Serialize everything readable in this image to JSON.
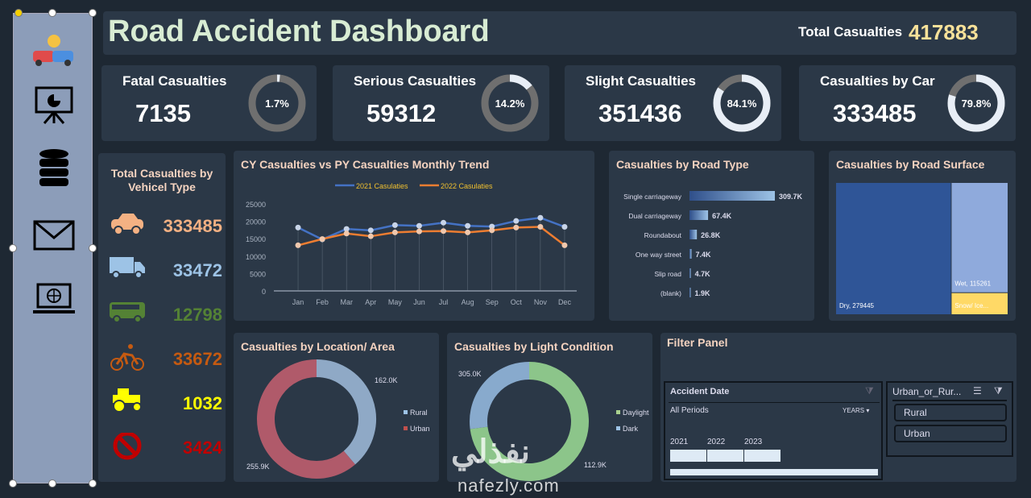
{
  "header": {
    "title": "Road Accident Dashboard",
    "total_label": "Total Casualties",
    "total_value": "417883"
  },
  "sidebar": {
    "items": [
      {
        "icon": "car-crash-icon"
      },
      {
        "icon": "presentation-icon"
      },
      {
        "icon": "database-icon"
      },
      {
        "icon": "mail-icon"
      },
      {
        "icon": "laptop-globe-icon"
      }
    ]
  },
  "kpis": [
    {
      "label": "Fatal Casualties",
      "value": "7135",
      "pct_label": "1.7%",
      "pct": 1.7
    },
    {
      "label": "Serious Casualties",
      "value": "59312",
      "pct_label": "14.2%",
      "pct": 14.2
    },
    {
      "label": "Slight Casualties",
      "value": "351436",
      "pct_label": "84.1%",
      "pct": 84.1
    },
    {
      "label": "Casualties by Car",
      "value": "333485",
      "pct_label": "79.8%",
      "pct": 79.8
    }
  ],
  "vehicles": {
    "title": "Total Casualties by Vehicel Type",
    "items": [
      {
        "icon": "car-icon",
        "value": "333485",
        "color": "#f4b183"
      },
      {
        "icon": "truck-icon",
        "value": "33472",
        "color": "#9dc3e6"
      },
      {
        "icon": "bus-icon",
        "value": "12798",
        "color": "#548235"
      },
      {
        "icon": "bicycle-icon",
        "value": "33672",
        "color": "#c55a11"
      },
      {
        "icon": "tractor-icon",
        "value": "1032",
        "color": "#ffff00"
      },
      {
        "icon": "prohibited-icon",
        "value": "3424",
        "color": "#c00000"
      }
    ]
  },
  "chart_data": [
    {
      "type": "line",
      "title": "CY Casualties vs PY Casualties Monthly Trend",
      "categories": [
        "Jan",
        "Feb",
        "Mar",
        "Apr",
        "May",
        "Jun",
        "Jul",
        "Aug",
        "Sep",
        "Oct",
        "Nov",
        "Dec"
      ],
      "ylim": [
        0,
        25000
      ],
      "yticks": [
        "25000",
        "20000",
        "15000",
        "10000",
        "5000",
        "0"
      ],
      "legend": "top",
      "series": [
        {
          "name": "2021 Casulaties",
          "color": "#4472c4",
          "values": [
            18200,
            14800,
            17800,
            17400,
            18900,
            18700,
            19600,
            18700,
            18500,
            20100,
            21000,
            18400
          ]
        },
        {
          "name": "2022 Casulaties",
          "color": "#ed7d31",
          "values": [
            13100,
            14900,
            16500,
            15700,
            16800,
            17100,
            17200,
            16800,
            17400,
            18200,
            18400,
            13100
          ]
        }
      ]
    },
    {
      "type": "bar",
      "orientation": "horizontal",
      "title": "Casualties by Road Type",
      "categories": [
        "Single carriageway",
        "Dual carriageway",
        "Roundabout",
        "One way street",
        "Slip road",
        "(blank)"
      ],
      "values": [
        309.7,
        67.4,
        26.8,
        7.4,
        4.7,
        1.9
      ],
      "labels": [
        "309.7K",
        "67.4K",
        "26.8K",
        "7.4K",
        "4.7K",
        "1.9K"
      ]
    },
    {
      "type": "treemap",
      "title": "Casualties by Road Surface",
      "items": [
        {
          "label": "Dry, 279445",
          "value": 279445,
          "color": "#2f5597"
        },
        {
          "label": "Wet, 115261",
          "value": 115261,
          "color": "#8faadc"
        },
        {
          "label": "Snow/ Ice...",
          "value": 23177,
          "color": "#ffd966"
        }
      ]
    },
    {
      "type": "pie",
      "donut": true,
      "title": "Casualties by Location/ Area",
      "series": [
        {
          "name": "Rural",
          "value": 162.0,
          "label": "162.0K",
          "color": "#9dc3e6"
        },
        {
          "name": "Urban",
          "value": 255.9,
          "label": "255.9K",
          "color": "#c0504d"
        }
      ]
    },
    {
      "type": "pie",
      "donut": true,
      "title": "Casualties by Light Condition",
      "series": [
        {
          "name": "Daylight",
          "value": 305.0,
          "label": "305.0K",
          "color": "#a9d18e"
        },
        {
          "name": "Dark",
          "value": 112.9,
          "label": "112.9K",
          "color": "#9dc3e6"
        }
      ]
    }
  ],
  "filter": {
    "title": "Filter Panel",
    "date_title": "Accident Date",
    "periods": "All Periods",
    "granularity": "YEARS",
    "years": [
      "2021",
      "2022",
      "2023"
    ],
    "area_title": "Urban_or_Rur...",
    "area_options": [
      "Rural",
      "Urban"
    ]
  },
  "watermark": {
    "arabic": "نفذلي",
    "latin": "nafezly.com"
  }
}
